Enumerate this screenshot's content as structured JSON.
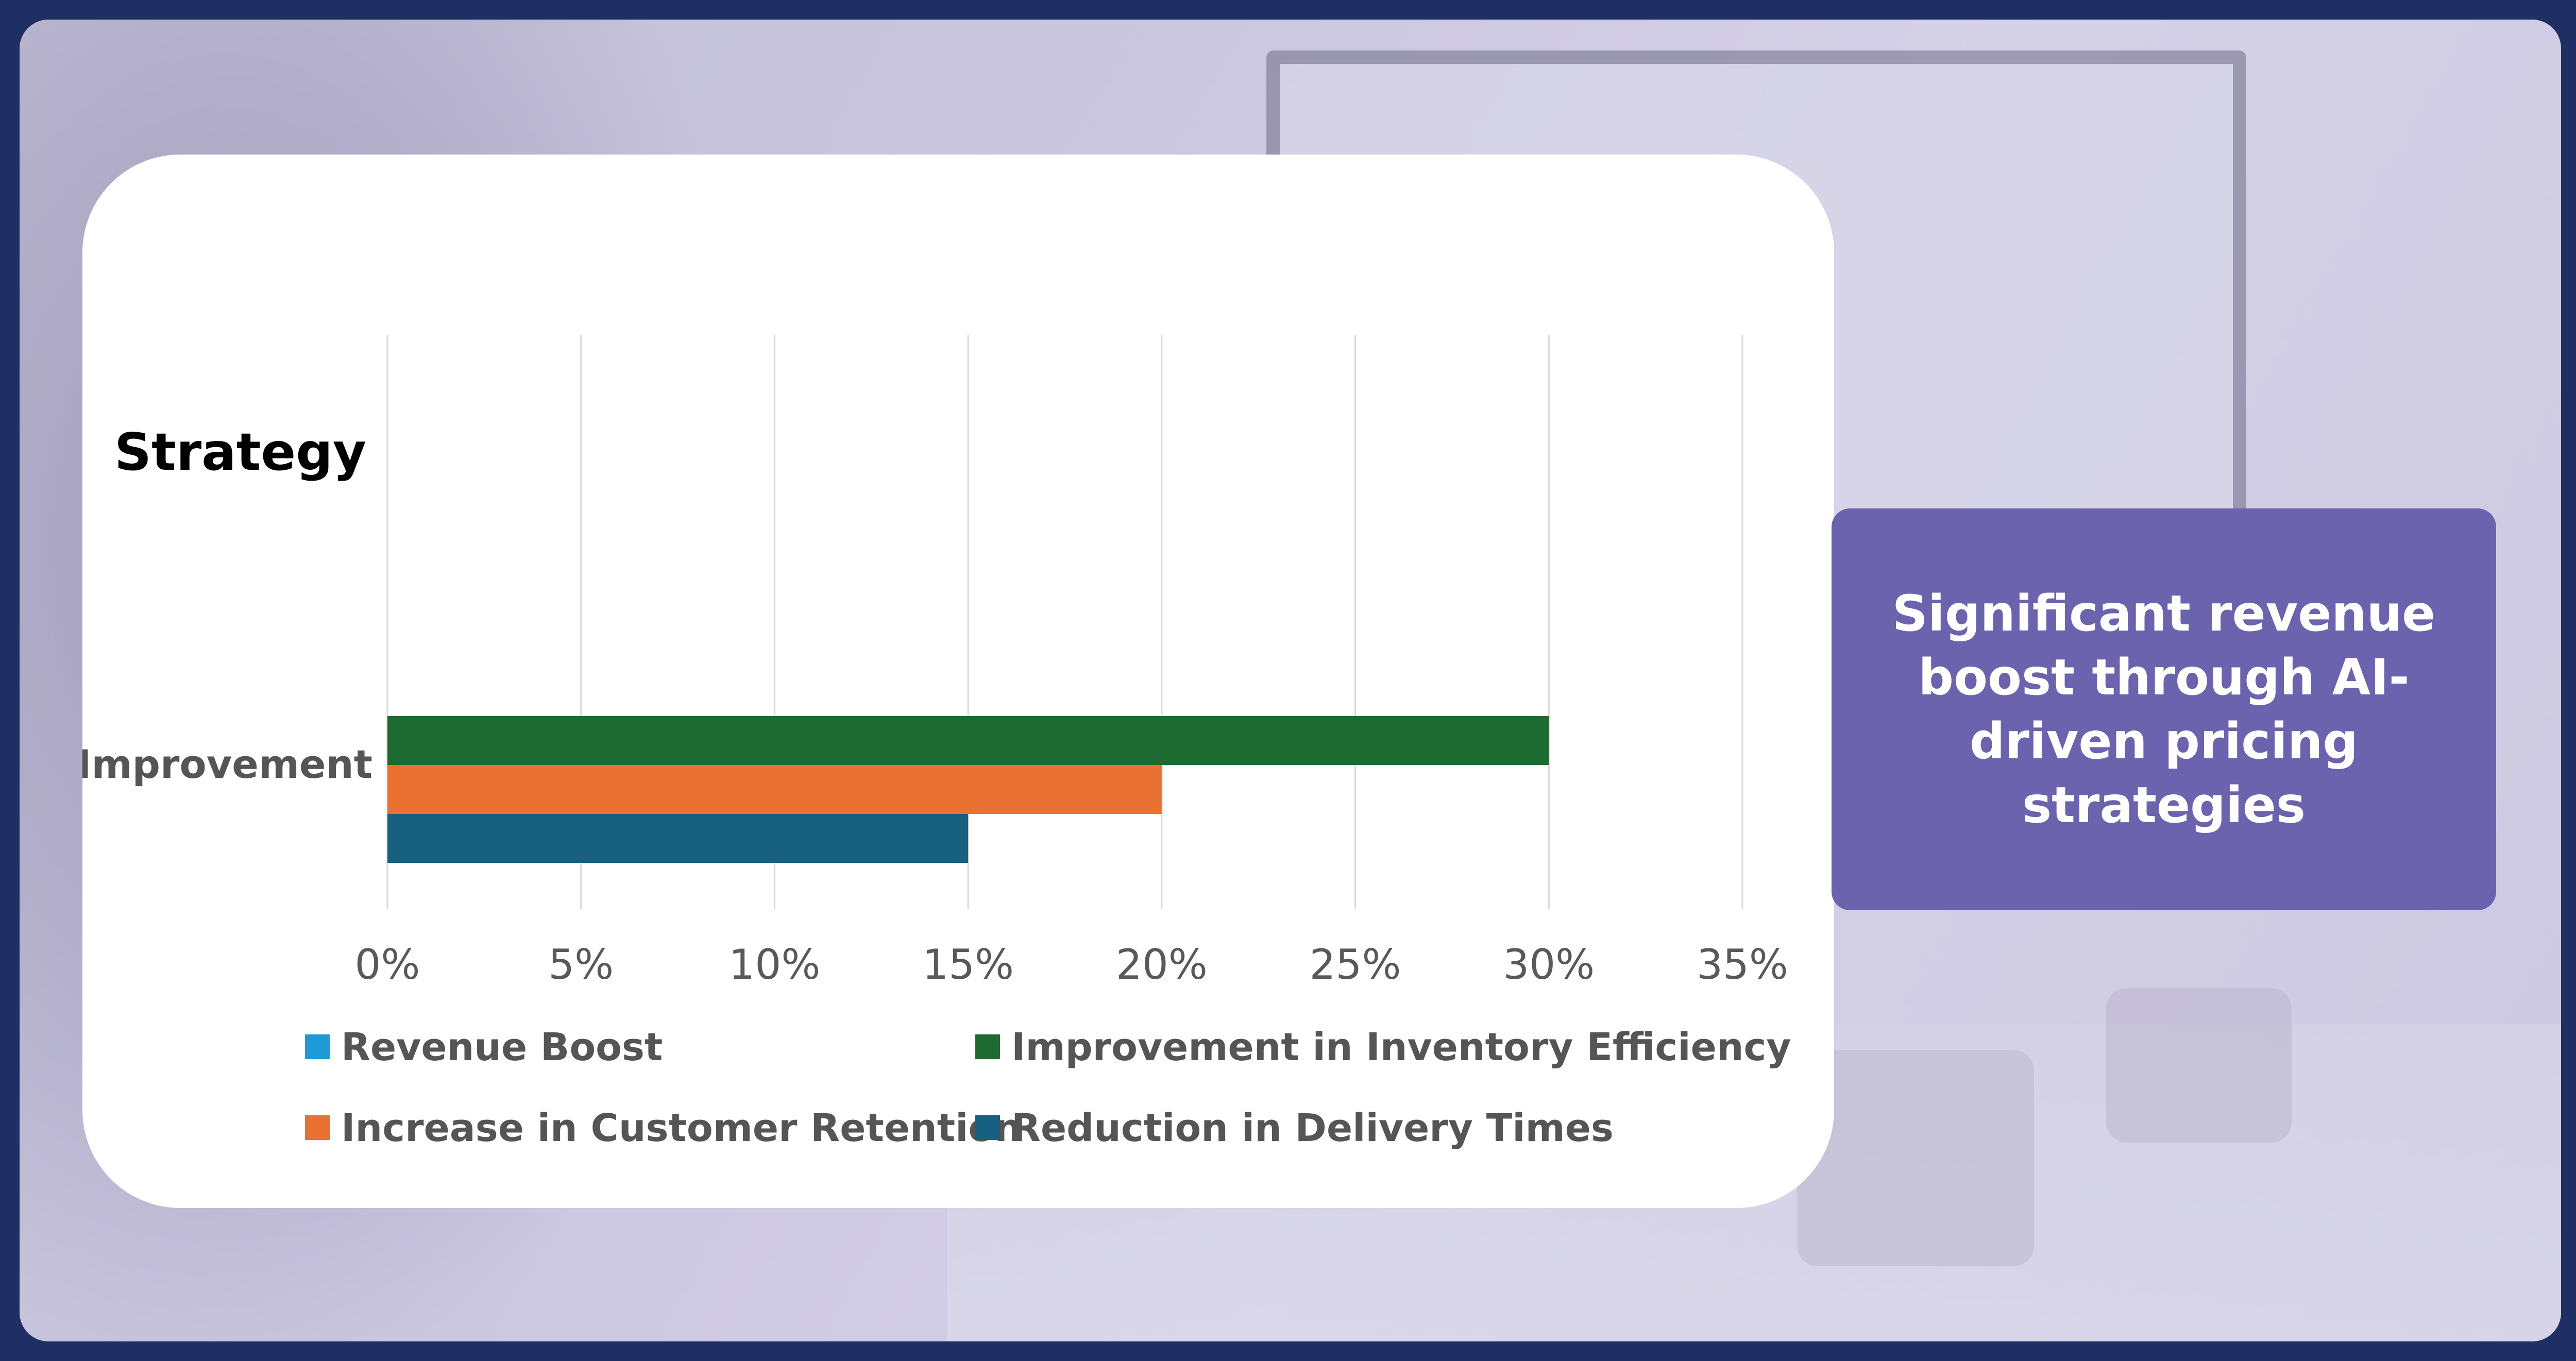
{
  "callout": {
    "text": "Significant revenue boost through AI-driven pricing strategies"
  },
  "colors": {
    "revenue_boost": "#1e9bd7",
    "inventory_efficiency": "#1e6b32",
    "customer_retention": "#e97232",
    "delivery_times": "#17607f",
    "callout_bg": "#6b63ae",
    "page_border": "#1f2f63"
  },
  "chart_data": {
    "type": "bar",
    "orientation": "horizontal",
    "title": "Strategy",
    "categories": [
      "Improvement"
    ],
    "series": [
      {
        "name": "Revenue Boost",
        "values": [
          0
        ],
        "color": "#1e9bd7"
      },
      {
        "name": "Improvement in Inventory Efficiency",
        "values": [
          30
        ],
        "color": "#1e6b32"
      },
      {
        "name": "Increase in Customer Retention",
        "values": [
          20
        ],
        "color": "#e97232"
      },
      {
        "name": "Reduction in Delivery Times",
        "values": [
          15
        ],
        "color": "#17607f"
      }
    ],
    "xlim": [
      0,
      35
    ],
    "xticks": [
      "0%",
      "5%",
      "10%",
      "15%",
      "20%",
      "25%",
      "30%",
      "35%"
    ],
    "grid": true,
    "legend_position": "bottom"
  }
}
